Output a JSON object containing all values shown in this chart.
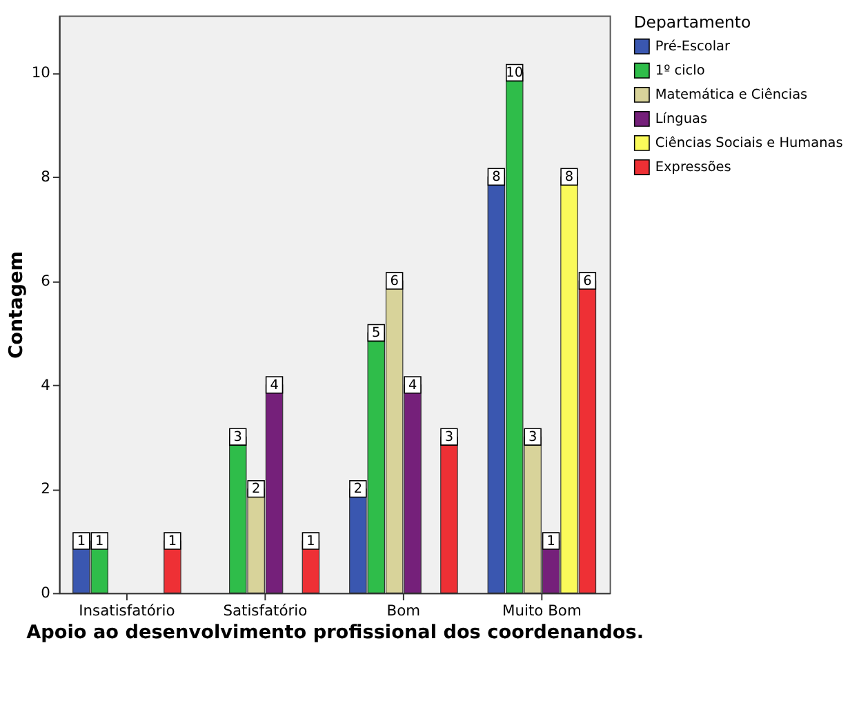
{
  "chart_data": {
    "type": "bar",
    "xlabel": "Apoio ao desenvolvimento profissional dos coordenandos.",
    "ylabel": "Contagem",
    "legend_title": "Departamento",
    "legend": "top right",
    "grid": false,
    "data_labels": true,
    "categories": [
      "Insatisfatório",
      "Satisfatório",
      "Bom",
      "Muito Bom"
    ],
    "ylim": [
      0,
      11.1
    ],
    "yticks": [
      0,
      2,
      4,
      6,
      8,
      10
    ],
    "series": [
      {
        "name": "Pré-Escolar",
        "color": "#3a57b0",
        "values": [
          1,
          null,
          2,
          8
        ]
      },
      {
        "name": "1º ciclo",
        "color": "#2fbd4a",
        "values": [
          1,
          3,
          5,
          10
        ]
      },
      {
        "name": "Matemática e Ciências",
        "color": "#d8d39a",
        "values": [
          null,
          2,
          6,
          3
        ]
      },
      {
        "name": "Línguas",
        "color": "#75207a",
        "values": [
          null,
          4,
          4,
          1
        ]
      },
      {
        "name": "Ciências Sociais e Humanas",
        "color": "#fafa5a",
        "values": [
          null,
          null,
          null,
          8
        ]
      },
      {
        "name": "Expressões",
        "color": "#ee3035",
        "values": [
          1,
          1,
          3,
          6
        ]
      }
    ]
  }
}
